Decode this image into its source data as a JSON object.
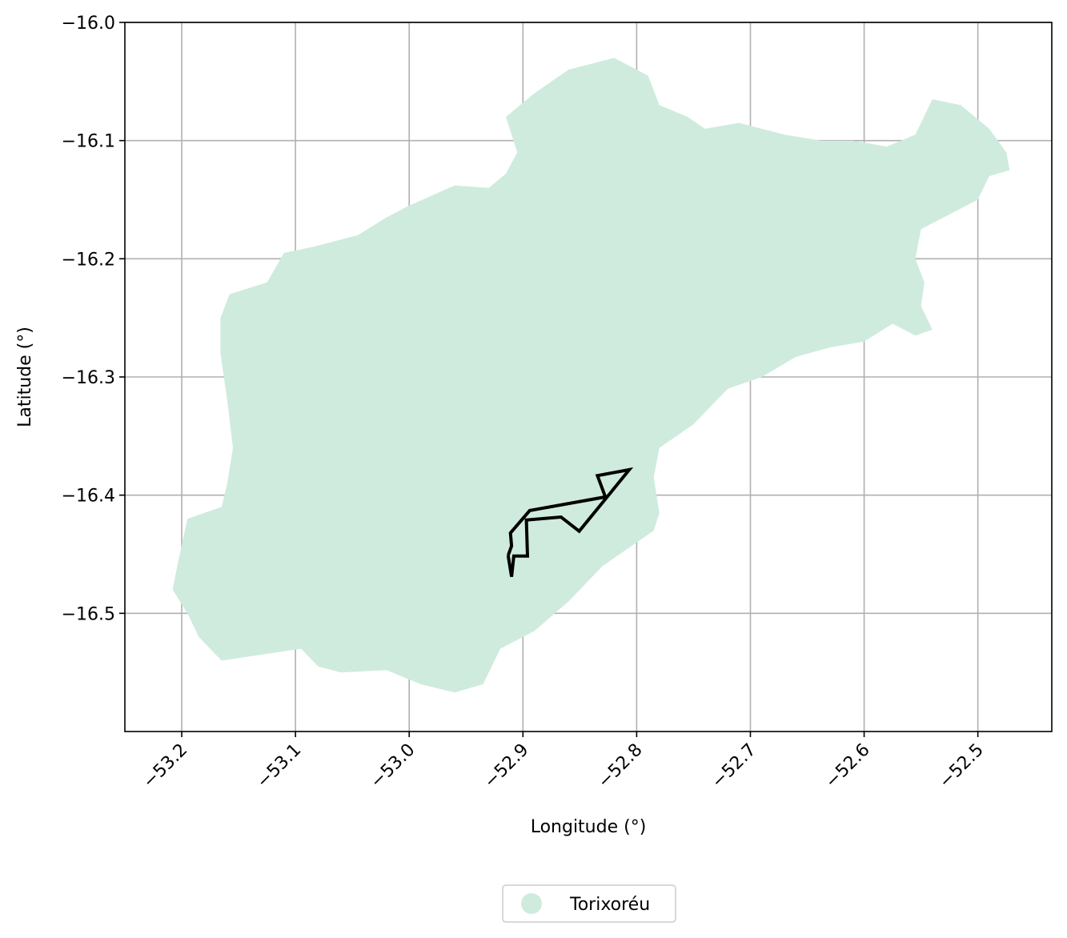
{
  "chart_data": {
    "type": "map",
    "title": "",
    "xlabel": "Longitude (°)",
    "ylabel": "Latitude (°)",
    "xlim": [
      -53.25,
      -52.435
    ],
    "ylim": [
      -16.6,
      -16.0
    ],
    "grid": true,
    "legend_placement": "bottom-center",
    "xticks": [
      -53.2,
      -53.1,
      -53.0,
      -52.9,
      -52.8,
      -52.7,
      -52.6,
      -52.5
    ],
    "xtick_labels": [
      "−53.2",
      "−53.1",
      "−53.0",
      "−52.9",
      "−52.8",
      "−52.7",
      "−52.6",
      "−52.5"
    ],
    "yticks": [
      -16.0,
      -16.1,
      -16.2,
      -16.3,
      -16.4,
      -16.5
    ],
    "ytick_labels": [
      "−16.0",
      "−16.1",
      "−16.2",
      "−16.3",
      "−16.4",
      "−16.5"
    ],
    "region": {
      "name": "Torixoréu",
      "color": "#cfebde",
      "boundary": [
        [
          -53.204,
          -16.46
        ],
        [
          -53.195,
          -16.42
        ],
        [
          -53.165,
          -16.41
        ],
        [
          -53.16,
          -16.39
        ],
        [
          -53.155,
          -16.36
        ],
        [
          -53.16,
          -16.32
        ],
        [
          -53.166,
          -16.28
        ],
        [
          -53.166,
          -16.25
        ],
        [
          -53.158,
          -16.23
        ],
        [
          -53.125,
          -16.22
        ],
        [
          -53.11,
          -16.195
        ],
        [
          -53.085,
          -16.19
        ],
        [
          -53.045,
          -16.18
        ],
        [
          -53.02,
          -16.165
        ],
        [
          -53.0,
          -16.155
        ],
        [
          -52.96,
          -16.138
        ],
        [
          -52.93,
          -16.14
        ],
        [
          -52.915,
          -16.128
        ],
        [
          -52.905,
          -16.11
        ],
        [
          -52.915,
          -16.08
        ],
        [
          -52.89,
          -16.06
        ],
        [
          -52.86,
          -16.04
        ],
        [
          -52.82,
          -16.03
        ],
        [
          -52.79,
          -16.045
        ],
        [
          -52.78,
          -16.07
        ],
        [
          -52.755,
          -16.08
        ],
        [
          -52.74,
          -16.09
        ],
        [
          -52.71,
          -16.085
        ],
        [
          -52.67,
          -16.095
        ],
        [
          -52.638,
          -16.1
        ],
        [
          -52.61,
          -16.1
        ],
        [
          -52.58,
          -16.105
        ],
        [
          -52.555,
          -16.095
        ],
        [
          -52.54,
          -16.065
        ],
        [
          -52.515,
          -16.07
        ],
        [
          -52.49,
          -16.09
        ],
        [
          -52.475,
          -16.11
        ],
        [
          -52.472,
          -16.125
        ],
        [
          -52.49,
          -16.13
        ],
        [
          -52.5,
          -16.15
        ],
        [
          -52.52,
          -16.16
        ],
        [
          -52.55,
          -16.175
        ],
        [
          -52.555,
          -16.2
        ],
        [
          -52.547,
          -16.22
        ],
        [
          -52.55,
          -16.24
        ],
        [
          -52.54,
          -16.26
        ],
        [
          -52.555,
          -16.265
        ],
        [
          -52.575,
          -16.255
        ],
        [
          -52.6,
          -16.27
        ],
        [
          -52.63,
          -16.275
        ],
        [
          -52.66,
          -16.283
        ],
        [
          -52.69,
          -16.3
        ],
        [
          -52.72,
          -16.31
        ],
        [
          -52.75,
          -16.34
        ],
        [
          -52.78,
          -16.36
        ],
        [
          -52.785,
          -16.385
        ],
        [
          -52.78,
          -16.415
        ],
        [
          -52.785,
          -16.43
        ],
        [
          -52.8,
          -16.44
        ],
        [
          -52.83,
          -16.46
        ],
        [
          -52.86,
          -16.49
        ],
        [
          -52.89,
          -16.515
        ],
        [
          -52.92,
          -16.53
        ],
        [
          -52.935,
          -16.56
        ],
        [
          -52.96,
          -16.567
        ],
        [
          -52.99,
          -16.56
        ],
        [
          -53.02,
          -16.548
        ],
        [
          -53.06,
          -16.55
        ],
        [
          -53.08,
          -16.545
        ],
        [
          -53.095,
          -16.53
        ],
        [
          -53.13,
          -16.535
        ],
        [
          -53.165,
          -16.54
        ],
        [
          -53.185,
          -16.52
        ],
        [
          -53.195,
          -16.5
        ],
        [
          -53.208,
          -16.48
        ]
      ]
    },
    "outline": {
      "color": "#000000",
      "points": [
        [
          -52.913,
          -16.451
        ],
        [
          -52.91,
          -16.443
        ],
        [
          -52.911,
          -16.432
        ],
        [
          -52.894,
          -16.413
        ],
        [
          -52.8275,
          -16.4015
        ],
        [
          -52.8345,
          -16.3835
        ],
        [
          -52.8065,
          -16.3785
        ],
        [
          -52.8505,
          -16.4305
        ],
        [
          -52.8665,
          -16.4185
        ],
        [
          -52.897,
          -16.421
        ],
        [
          -52.896,
          -16.4515
        ],
        [
          -52.908,
          -16.4515
        ],
        [
          -52.91,
          -16.469
        ],
        [
          -52.913,
          -16.451
        ]
      ]
    },
    "legend": [
      {
        "label": "Torixoréu",
        "color": "#cfebde"
      }
    ]
  }
}
